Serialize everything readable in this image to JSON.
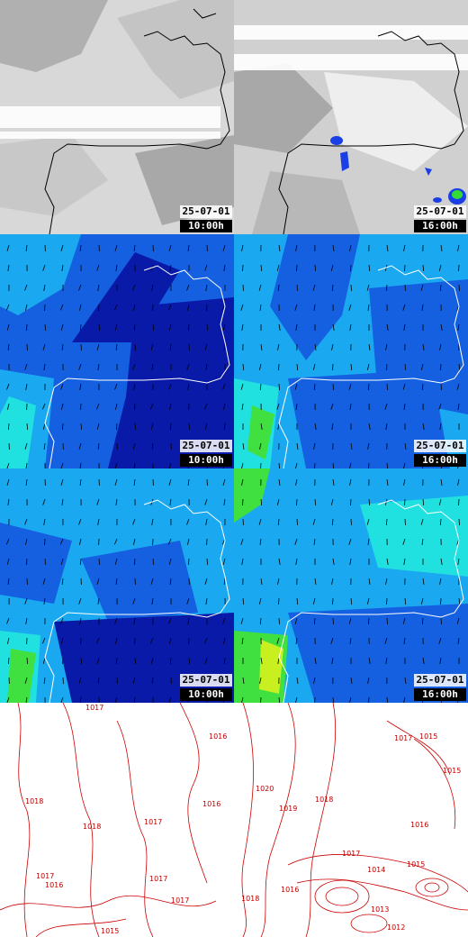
{
  "colors": {
    "coast": "#ffffff",
    "coast_dark": "#000000",
    "isobar": "#cc0000",
    "cloud_light": "#e8e8e8",
    "cloud_mid": "#b8b8b8",
    "precip_blue": "#1a3fe6",
    "precip_green": "#33dd33",
    "wind_dark": "#0a1aa8",
    "wind_mid": "#1560e0",
    "wind_light": "#1aa8f0",
    "wind_cyan": "#20e0e0",
    "wind_green": "#40e040",
    "wind_yellow": "#c8f020"
  },
  "panels": [
    {
      "id": "cloud-10",
      "layer": "clouds",
      "date": "25-07-01",
      "time": "10:00h"
    },
    {
      "id": "cloud-16",
      "layer": "clouds-precip",
      "date": "25-07-01",
      "time": "16:00h"
    },
    {
      "id": "wind-low-10",
      "layer": "wind",
      "date": "25-07-01",
      "time": "10:00h"
    },
    {
      "id": "wind-low-16",
      "layer": "wind",
      "date": "25-07-01",
      "time": "16:00h"
    },
    {
      "id": "wind-high-10",
      "layer": "wind",
      "date": "25-07-01",
      "time": "10:00h"
    },
    {
      "id": "wind-high-16",
      "layer": "wind",
      "date": "25-07-01",
      "time": "16:00h"
    },
    {
      "id": "pressure-10",
      "layer": "isobars"
    },
    {
      "id": "pressure-16",
      "layer": "isobars"
    }
  ],
  "isobar_labels_left": [
    "1017",
    "1016",
    "1016",
    "1018",
    "1018",
    "1017",
    "1017",
    "1016",
    "1017",
    "1017",
    "1015"
  ],
  "isobar_labels_right": [
    "1017",
    "1015",
    "1015",
    "1020",
    "1019",
    "1018",
    "1016",
    "1017",
    "1014",
    "1015",
    "1018",
    "1016",
    "1013",
    "1012"
  ]
}
